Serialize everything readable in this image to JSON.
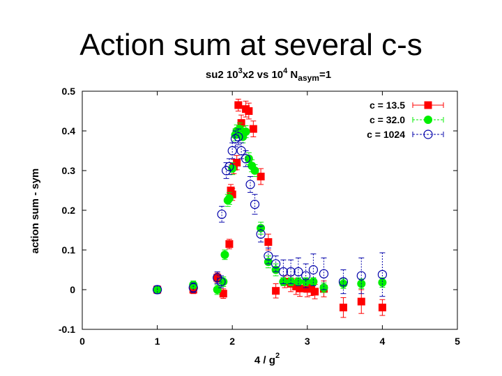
{
  "slide": {
    "title": "Action sum at several c-s"
  },
  "chart_data": {
    "type": "scatter",
    "title_parts": {
      "a": "su2 10",
      "a_sup": "3",
      "b": "x2 vs 10",
      "b_sup": "4",
      "c": " N",
      "c_sub": "asym",
      "d": "=1"
    },
    "xlabel": "4 / g",
    "xlabel_sup": "2",
    "ylabel": "action sum - sym",
    "xlim": [
      0,
      5
    ],
    "ylim": [
      -0.1,
      0.5
    ],
    "xticks": [
      "0",
      "1",
      "2",
      "3",
      "4",
      "5"
    ],
    "yticks": [
      "-0.1",
      "0",
      "0.1",
      "0.2",
      "0.3",
      "0.4",
      "0.5"
    ],
    "legend_position": "top-right",
    "series": [
      {
        "name": "c = 13.5",
        "marker": "square",
        "color": "#ff0000",
        "points": [
          [
            1.0,
            0.0,
            0.008
          ],
          [
            1.48,
            0.0,
            0.01
          ],
          [
            1.8,
            0.03,
            0.012
          ],
          [
            1.88,
            -0.01,
            0.012
          ],
          [
            1.96,
            0.115,
            0.012
          ],
          [
            1.98,
            0.25,
            0.015
          ],
          [
            2.0,
            0.24,
            0.015
          ],
          [
            2.02,
            0.31,
            0.018
          ],
          [
            2.06,
            0.32,
            0.018
          ],
          [
            2.08,
            0.465,
            0.015
          ],
          [
            2.12,
            0.42,
            0.02
          ],
          [
            2.18,
            0.455,
            0.02
          ],
          [
            2.22,
            0.45,
            0.02
          ],
          [
            2.28,
            0.405,
            0.02
          ],
          [
            2.38,
            0.285,
            0.02
          ],
          [
            2.48,
            0.12,
            0.02
          ],
          [
            2.58,
            -0.003,
            0.018
          ],
          [
            2.7,
            0.02,
            0.015
          ],
          [
            2.78,
            0.015,
            0.02
          ],
          [
            2.85,
            0.008,
            0.02
          ],
          [
            2.9,
            0.003,
            0.02
          ],
          [
            3.0,
            0.002,
            0.02
          ],
          [
            3.05,
            0.005,
            0.02
          ],
          [
            3.1,
            -0.005,
            0.018
          ],
          [
            3.22,
            0.002,
            0.02
          ],
          [
            3.48,
            -0.045,
            0.025
          ],
          [
            3.72,
            -0.03,
            0.03
          ],
          [
            4.0,
            -0.045,
            0.02
          ]
        ]
      },
      {
        "name": "c = 32.0",
        "marker": "circle-filled",
        "color": "#00ee00",
        "points": [
          [
            1.0,
            0.0,
            0.008
          ],
          [
            1.48,
            0.012,
            0.01
          ],
          [
            1.8,
            0.0,
            0.012
          ],
          [
            1.88,
            0.02,
            0.012
          ],
          [
            1.9,
            0.088,
            0.012
          ],
          [
            1.94,
            0.225,
            0.015
          ],
          [
            1.96,
            0.23,
            0.015
          ],
          [
            2.0,
            0.305,
            0.015
          ],
          [
            2.04,
            0.39,
            0.015
          ],
          [
            2.06,
            0.4,
            0.015
          ],
          [
            2.1,
            0.405,
            0.015
          ],
          [
            2.14,
            0.385,
            0.015
          ],
          [
            2.18,
            0.398,
            0.015
          ],
          [
            2.22,
            0.33,
            0.015
          ],
          [
            2.26,
            0.312,
            0.015
          ],
          [
            2.3,
            0.3,
            0.015
          ],
          [
            2.38,
            0.155,
            0.015
          ],
          [
            2.48,
            0.07,
            0.015
          ],
          [
            2.58,
            0.05,
            0.015
          ],
          [
            2.68,
            0.02,
            0.01
          ],
          [
            2.78,
            0.02,
            0.01
          ],
          [
            2.88,
            0.02,
            0.01
          ],
          [
            2.98,
            0.02,
            0.01
          ],
          [
            3.08,
            0.02,
            0.01
          ],
          [
            3.22,
            0.005,
            0.012
          ],
          [
            3.48,
            0.015,
            0.012
          ],
          [
            3.72,
            0.015,
            0.012
          ],
          [
            4.0,
            0.018,
            0.012
          ]
        ]
      },
      {
        "name": "c = 1024",
        "marker": "circle-open",
        "color": "#0000aa",
        "points": [
          [
            1.0,
            0.0,
            0.01
          ],
          [
            1.48,
            0.005,
            0.012
          ],
          [
            1.8,
            0.03,
            0.015
          ],
          [
            1.85,
            0.02,
            0.015
          ],
          [
            1.86,
            0.19,
            0.02
          ],
          [
            1.92,
            0.3,
            0.02
          ],
          [
            1.96,
            0.31,
            0.02
          ],
          [
            2.0,
            0.35,
            0.02
          ],
          [
            2.04,
            0.38,
            0.02
          ],
          [
            2.08,
            0.385,
            0.02
          ],
          [
            2.12,
            0.35,
            0.02
          ],
          [
            2.18,
            0.33,
            0.02
          ],
          [
            2.24,
            0.265,
            0.02
          ],
          [
            2.3,
            0.215,
            0.025
          ],
          [
            2.38,
            0.14,
            0.02
          ],
          [
            2.48,
            0.085,
            0.02
          ],
          [
            2.58,
            0.065,
            0.02
          ],
          [
            2.68,
            0.045,
            0.03
          ],
          [
            2.78,
            0.045,
            0.03
          ],
          [
            2.88,
            0.045,
            0.035
          ],
          [
            2.98,
            0.035,
            0.03
          ],
          [
            3.08,
            0.05,
            0.04
          ],
          [
            3.22,
            0.04,
            0.04
          ],
          [
            3.48,
            0.02,
            0.03
          ],
          [
            3.72,
            0.035,
            0.045
          ],
          [
            4.0,
            0.038,
            0.055
          ]
        ]
      }
    ]
  }
}
